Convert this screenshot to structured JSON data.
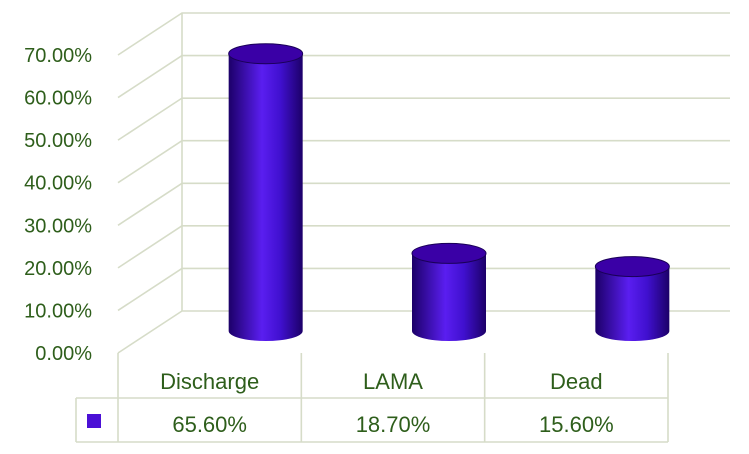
{
  "chart_data": {
    "type": "bar",
    "categories": [
      "Discharge",
      "LAMA",
      "Dead"
    ],
    "values": [
      65.6,
      18.7,
      15.6
    ],
    "value_labels": [
      "65.60%",
      "18.70%",
      "15.60%"
    ],
    "yticks": [
      "0.00%",
      "10.00%",
      "20.00%",
      "30.00%",
      "40.00%",
      "50.00%",
      "60.00%",
      "70.00%"
    ],
    "ylim": [
      0,
      70
    ],
    "grid": true,
    "bar_style": "3d-cylinder",
    "legend": "data-table-below",
    "colors": {
      "bar": "#4b10d6",
      "bar_dark": "#24007a",
      "bar_top": "#3a00a6",
      "grid": "#d6dcc8",
      "text": "#2e5e1b"
    }
  }
}
